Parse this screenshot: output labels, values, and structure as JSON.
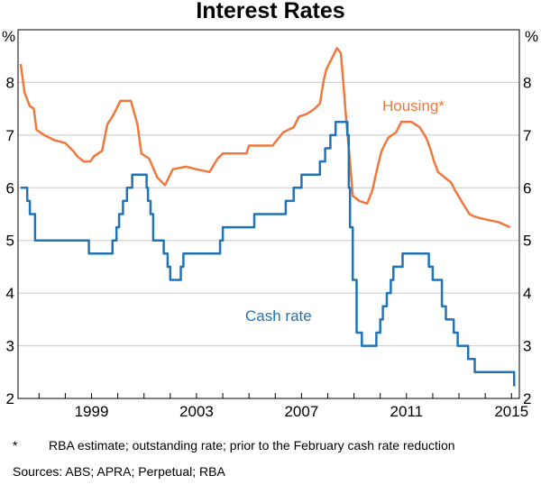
{
  "chart_data": {
    "type": "line",
    "title": "Interest Rates",
    "unit_left": "%",
    "unit_right": "%",
    "xlim": [
      1996.2,
      2015.3
    ],
    "ylim": [
      2,
      9
    ],
    "y_ticks": [
      2,
      3,
      4,
      5,
      6,
      7,
      8
    ],
    "x_ticks": [
      {
        "value": 1999,
        "label": "1999"
      },
      {
        "value": 2003,
        "label": "2003"
      },
      {
        "value": 2007,
        "label": "2007"
      },
      {
        "value": 2011,
        "label": "2011"
      },
      {
        "value": 2015,
        "label": "2015"
      }
    ],
    "grid": "horizontal",
    "series": [
      {
        "name": "Housing*",
        "color": "#f0783c",
        "step": false,
        "points": [
          [
            1996.3,
            8.35
          ],
          [
            1996.45,
            7.8
          ],
          [
            1996.65,
            7.55
          ],
          [
            1996.8,
            7.5
          ],
          [
            1996.9,
            7.1
          ],
          [
            1997.2,
            7.0
          ],
          [
            1997.6,
            6.9
          ],
          [
            1998.0,
            6.85
          ],
          [
            1998.3,
            6.7
          ],
          [
            1998.45,
            6.6
          ],
          [
            1998.7,
            6.5
          ],
          [
            1998.95,
            6.5
          ],
          [
            1999.1,
            6.6
          ],
          [
            1999.4,
            6.7
          ],
          [
            1999.6,
            7.2
          ],
          [
            1999.85,
            7.4
          ],
          [
            2000.1,
            7.65
          ],
          [
            2000.5,
            7.65
          ],
          [
            2000.75,
            7.2
          ],
          [
            2000.9,
            6.65
          ],
          [
            2001.2,
            6.55
          ],
          [
            2001.5,
            6.2
          ],
          [
            2001.8,
            6.05
          ],
          [
            2002.1,
            6.35
          ],
          [
            2002.6,
            6.4
          ],
          [
            2003.0,
            6.35
          ],
          [
            2003.5,
            6.3
          ],
          [
            2003.8,
            6.55
          ],
          [
            2004.0,
            6.65
          ],
          [
            2004.5,
            6.65
          ],
          [
            2004.9,
            6.65
          ],
          [
            2005.0,
            6.8
          ],
          [
            2005.9,
            6.8
          ],
          [
            2006.3,
            7.05
          ],
          [
            2006.7,
            7.15
          ],
          [
            2006.9,
            7.35
          ],
          [
            2007.2,
            7.4
          ],
          [
            2007.5,
            7.5
          ],
          [
            2007.7,
            7.6
          ],
          [
            2007.85,
            8.05
          ],
          [
            2007.95,
            8.25
          ],
          [
            2008.15,
            8.45
          ],
          [
            2008.35,
            8.65
          ],
          [
            2008.5,
            8.55
          ],
          [
            2008.6,
            7.95
          ],
          [
            2008.7,
            7.3
          ],
          [
            2008.85,
            6.5
          ],
          [
            2008.95,
            5.85
          ],
          [
            2009.2,
            5.75
          ],
          [
            2009.5,
            5.7
          ],
          [
            2009.7,
            5.95
          ],
          [
            2009.9,
            6.4
          ],
          [
            2010.05,
            6.7
          ],
          [
            2010.3,
            6.95
          ],
          [
            2010.6,
            7.05
          ],
          [
            2010.8,
            7.25
          ],
          [
            2011.2,
            7.25
          ],
          [
            2011.5,
            7.15
          ],
          [
            2011.75,
            6.95
          ],
          [
            2011.9,
            6.75
          ],
          [
            2012.05,
            6.5
          ],
          [
            2012.2,
            6.3
          ],
          [
            2012.45,
            6.2
          ],
          [
            2012.7,
            6.1
          ],
          [
            2012.85,
            5.95
          ],
          [
            2013.15,
            5.7
          ],
          [
            2013.4,
            5.5
          ],
          [
            2013.6,
            5.45
          ],
          [
            2014.0,
            5.4
          ],
          [
            2014.5,
            5.35
          ],
          [
            2014.95,
            5.25
          ]
        ]
      },
      {
        "name": "Cash rate",
        "color": "#1f73b7",
        "step": true,
        "points": [
          [
            1996.3,
            6.0
          ],
          [
            1996.55,
            5.75
          ],
          [
            1996.65,
            5.5
          ],
          [
            1996.85,
            5.0
          ],
          [
            1998.9,
            4.75
          ],
          [
            1999.8,
            5.0
          ],
          [
            1999.95,
            5.25
          ],
          [
            2000.05,
            5.5
          ],
          [
            2000.2,
            5.75
          ],
          [
            2000.35,
            6.0
          ],
          [
            2000.55,
            6.25
          ],
          [
            2001.1,
            6.0
          ],
          [
            2001.15,
            5.75
          ],
          [
            2001.25,
            5.5
          ],
          [
            2001.35,
            5.0
          ],
          [
            2001.75,
            4.75
          ],
          [
            2001.9,
            4.5
          ],
          [
            2002.0,
            4.25
          ],
          [
            2002.4,
            4.5
          ],
          [
            2002.5,
            4.75
          ],
          [
            2003.9,
            5.0
          ],
          [
            2004.0,
            5.25
          ],
          [
            2005.2,
            5.5
          ],
          [
            2006.4,
            5.75
          ],
          [
            2006.7,
            6.0
          ],
          [
            2007.0,
            6.25
          ],
          [
            2007.7,
            6.5
          ],
          [
            2007.9,
            6.75
          ],
          [
            2008.1,
            7.0
          ],
          [
            2008.3,
            7.25
          ],
          [
            2008.75,
            7.0
          ],
          [
            2008.8,
            6.0
          ],
          [
            2008.85,
            5.25
          ],
          [
            2008.95,
            4.25
          ],
          [
            2009.1,
            3.25
          ],
          [
            2009.3,
            3.0
          ],
          [
            2009.85,
            3.25
          ],
          [
            2010.0,
            3.5
          ],
          [
            2010.1,
            3.75
          ],
          [
            2010.25,
            4.0
          ],
          [
            2010.4,
            4.25
          ],
          [
            2010.5,
            4.5
          ],
          [
            2010.85,
            4.75
          ],
          [
            2011.85,
            4.5
          ],
          [
            2012.0,
            4.25
          ],
          [
            2012.35,
            3.75
          ],
          [
            2012.5,
            3.5
          ],
          [
            2012.8,
            3.25
          ],
          [
            2012.95,
            3.0
          ],
          [
            2013.35,
            2.75
          ],
          [
            2013.6,
            2.5
          ],
          [
            2015.1,
            2.25
          ],
          [
            2015.15,
            2.25
          ]
        ]
      }
    ]
  },
  "footnotes": {
    "mark": "*",
    "text": "RBA estimate; outstanding rate; prior to the February cash rate reduction",
    "sources": "Sources:   ABS; APRA; Perpetual; RBA"
  }
}
